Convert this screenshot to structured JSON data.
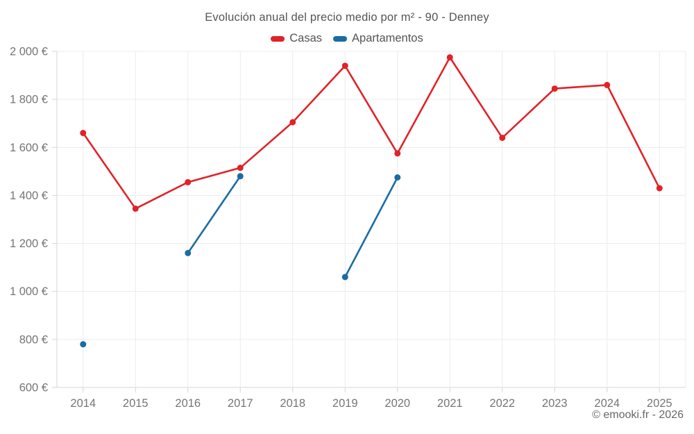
{
  "page": {
    "title": "Evolución anual del precio medio por m² - 90 - Denney",
    "attribution": "© emooki.fr - 2026"
  },
  "legend": {
    "items": [
      {
        "label": "Casas",
        "color": "#e02328"
      },
      {
        "label": "Apartamentos",
        "color": "#1a6ca3"
      }
    ]
  },
  "colors": {
    "background": "#ffffff",
    "grid": "#ececec",
    "axis": "#d6d6d6",
    "tick_label": "#757575",
    "title_text": "#545454",
    "casas": "#e02328",
    "apartamentos": "#1a6ca3"
  },
  "chart_data": {
    "type": "line",
    "title": "Evolución anual del precio medio por m² - 90 - Denney",
    "categories": [
      "2014",
      "2015",
      "2016",
      "2017",
      "2018",
      "2019",
      "2020",
      "2021",
      "2022",
      "2023",
      "2024",
      "2025"
    ],
    "series": [
      {
        "name": "Casas",
        "color": "#e02328",
        "values": [
          1660,
          1345,
          1455,
          1515,
          1705,
          1940,
          1575,
          1975,
          1640,
          1845,
          1860,
          1430
        ]
      },
      {
        "name": "Apartamentos",
        "color": "#1a6ca3",
        "values": [
          780,
          null,
          1160,
          1480,
          null,
          1060,
          1475,
          null,
          null,
          null,
          null,
          null
        ]
      }
    ],
    "ylim": [
      600,
      2000
    ],
    "ytick_step": 200,
    "ytick_labels": [
      "600 €",
      "800 €",
      "1 000 €",
      "1 200 €",
      "1 400 €",
      "1 600 €",
      "1 800 €",
      "2 000 €"
    ],
    "xlabel": "",
    "ylabel": "",
    "grid": true,
    "legend_position": "top",
    "marker": "circle",
    "marker_radius": 4.5,
    "line_width": 2.6
  }
}
